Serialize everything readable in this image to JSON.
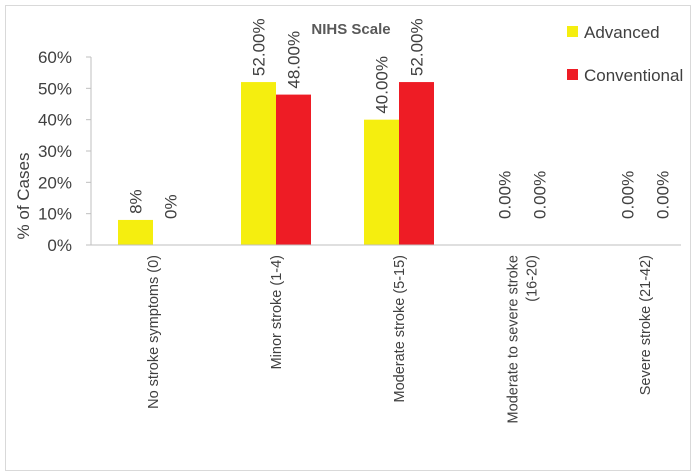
{
  "chart_data": {
    "type": "bar",
    "title": "NIHS Scale",
    "xlabel": "",
    "ylabel": "% of Cases",
    "ylim": [
      0,
      60
    ],
    "yticks": [
      "0%",
      "10%",
      "20%",
      "30%",
      "40%",
      "50%",
      "60%"
    ],
    "grid": false,
    "legend_position": "top-right",
    "categories": [
      "No stroke symptoms (0)",
      "Minor stroke (1-4)",
      "Moderate stroke (5-15)",
      "Moderate to severe stroke (16-20)",
      "Severe stroke (21-42)"
    ],
    "series": [
      {
        "name": "Advanced",
        "color": "#f5ee0f",
        "values": [
          8,
          52,
          40,
          0,
          0
        ],
        "labels": [
          "8%",
          "52.00%",
          "40.00%",
          "0.00%",
          "0.00%"
        ]
      },
      {
        "name": "Conventional",
        "color": "#ee1c25",
        "values": [
          0,
          48,
          52,
          0,
          0
        ],
        "labels": [
          "0%",
          "48.00%",
          "52.00%",
          "0.00%",
          "0.00%"
        ]
      }
    ]
  }
}
